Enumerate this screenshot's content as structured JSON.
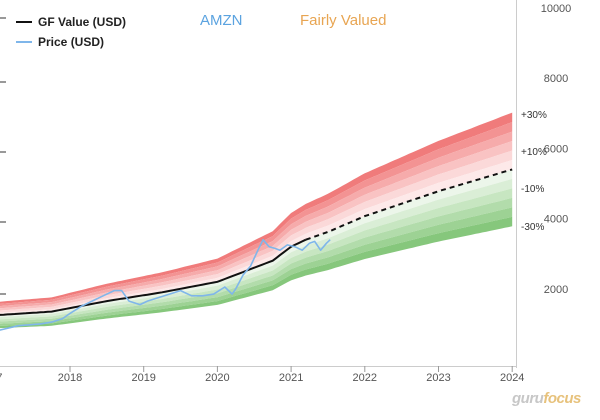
{
  "header": {
    "ticker": "AMZN",
    "valuation_label": "Fairly Valued",
    "ticker_color": "#5ba3e0",
    "valuation_color": "#e8a552"
  },
  "legend": {
    "items": [
      {
        "label": "GF Value (USD)",
        "color": "#111111"
      },
      {
        "label": "Price (USD)",
        "color": "#7fb6ea"
      }
    ]
  },
  "watermark": {
    "part1": "guru",
    "part2": "focus"
  },
  "chart_data": {
    "type": "line",
    "title": "AMZN",
    "subtitle": "Fairly Valued",
    "xlabel": "",
    "ylabel": "",
    "x_ticks": [
      "7",
      "2018",
      "2019",
      "2020",
      "2021",
      "2022",
      "2023",
      "2024"
    ],
    "x_range": [
      2017.0,
      2024.0
    ],
    "y_ticks": [
      2000,
      4000,
      6000,
      8000,
      10000
    ],
    "y_range": [
      0,
      10000
    ],
    "band_labels": [
      "+30%",
      "+10%",
      "-10%",
      "-30%"
    ],
    "grid": false,
    "legend_position": "top-left",
    "series": [
      {
        "name": "GF Value (USD)",
        "color": "#111111",
        "x": [
          2017.0,
          2017.75,
          2018.5,
          2019.25,
          2020.0,
          2020.25,
          2020.75,
          2021.0,
          2021.2,
          2021.5,
          2022.0,
          2023.0,
          2024.0
        ],
        "y": [
          1250,
          1350,
          1650,
          1900,
          2200,
          2400,
          2800,
          3200,
          3400,
          3620,
          4070,
          4780,
          5400
        ]
      },
      {
        "name": "Price (USD)",
        "color": "#7fb6ea",
        "x": [
          2017.0,
          2017.3,
          2017.6,
          2017.75,
          2017.9,
          2018.0,
          2018.15,
          2018.3,
          2018.45,
          2018.6,
          2018.7,
          2018.8,
          2018.95,
          2019.05,
          2019.2,
          2019.35,
          2019.5,
          2019.65,
          2019.8,
          2019.95,
          2020.1,
          2020.2,
          2020.25,
          2020.35,
          2020.45,
          2020.55,
          2020.62,
          2020.7,
          2020.78,
          2020.85,
          2020.95,
          2021.05,
          2021.15,
          2021.25,
          2021.32,
          2021.4,
          2021.48,
          2021.53
        ],
        "y": [
          800,
          950,
          1000,
          1050,
          1150,
          1300,
          1500,
          1650,
          1800,
          1950,
          1950,
          1650,
          1550,
          1650,
          1750,
          1850,
          1950,
          1800,
          1800,
          1850,
          2050,
          1850,
          2000,
          2400,
          2650,
          3100,
          3400,
          3200,
          3150,
          3100,
          3250,
          3200,
          3100,
          3300,
          3350,
          3100,
          3300,
          3400
        ]
      }
    ],
    "bands": {
      "base": "GF Value (USD)",
      "upper_multipliers": [
        1.3,
        1.25,
        1.2,
        1.15,
        1.1,
        1.05
      ],
      "lower_multipliers": [
        0.95,
        0.9,
        0.85,
        0.8,
        0.75,
        0.7
      ],
      "upper_colors": [
        "#f07b7b",
        "#f39393",
        "#f6abab",
        "#f9c3c3",
        "#fbd9d9",
        "#fde9e9"
      ],
      "lower_colors": [
        "#ecf6ea",
        "#daeed6",
        "#c7e6c1",
        "#b2dcab",
        "#9dd294",
        "#86c77c"
      ]
    }
  }
}
